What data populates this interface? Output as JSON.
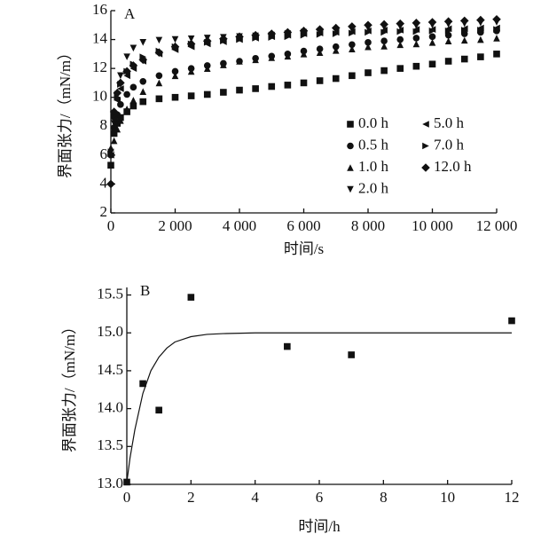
{
  "chart_data": [
    {
      "type": "scatter",
      "annotation": "A",
      "x_label": "时间/s",
      "y_label": "界面张力/（mN/m）",
      "xlim": [
        0,
        12000
      ],
      "ylim": [
        2,
        16
      ],
      "xticks": [
        0,
        {
          "value": 2000,
          "label": "2 000"
        },
        {
          "value": 4000,
          "label": "4 000"
        },
        {
          "value": 6000,
          "label": "6 000"
        },
        {
          "value": 8000,
          "label": "8 000"
        },
        {
          "value": 10000,
          "label": "10 000"
        },
        {
          "value": 12000,
          "label": "12 000"
        }
      ],
      "yticks": [
        2,
        4,
        6,
        8,
        10,
        12,
        14,
        16
      ],
      "x": [
        0,
        100,
        200,
        300,
        500,
        700,
        1000,
        1500,
        2000,
        2500,
        3000,
        3500,
        4000,
        4500,
        5000,
        5500,
        6000,
        6500,
        7000,
        7500,
        8000,
        8500,
        9000,
        9500,
        10000,
        10500,
        11000,
        11500,
        12000
      ],
      "series": [
        {
          "name": "0.0 h",
          "marker": "square",
          "color": "#111",
          "values": [
            5.3,
            7.5,
            8.2,
            8.6,
            9.0,
            9.4,
            9.7,
            9.9,
            10.0,
            10.1,
            10.2,
            10.35,
            10.5,
            10.6,
            10.75,
            10.85,
            11.0,
            11.15,
            11.3,
            11.5,
            11.7,
            11.85,
            12.0,
            12.15,
            12.3,
            12.5,
            12.65,
            12.8,
            13.0
          ]
        },
        {
          "name": "0.5 h",
          "marker": "circle",
          "color": "#111",
          "values": [
            6.0,
            7.9,
            8.8,
            9.5,
            10.2,
            10.7,
            11.1,
            11.5,
            11.8,
            12.0,
            12.2,
            12.35,
            12.5,
            12.7,
            12.85,
            13.0,
            13.2,
            13.35,
            13.5,
            13.65,
            13.8,
            13.9,
            14.0,
            14.1,
            14.2,
            14.3,
            14.4,
            14.5,
            14.6
          ]
        },
        {
          "name": "1.0 h",
          "marker": "up",
          "color": "#111",
          "values": [
            6.5,
            7.0,
            7.8,
            8.4,
            9.2,
            9.8,
            10.4,
            11.0,
            11.5,
            11.8,
            12.0,
            12.25,
            12.5,
            12.6,
            12.75,
            12.85,
            13.0,
            13.1,
            13.25,
            13.35,
            13.5,
            13.55,
            13.65,
            13.7,
            13.8,
            13.9,
            13.95,
            14.0,
            14.1
          ]
        },
        {
          "name": "2.0 h",
          "marker": "down",
          "color": "#111",
          "values": [
            6.2,
            8.2,
            10.2,
            11.5,
            12.8,
            13.4,
            13.8,
            13.95,
            14.0,
            14.05,
            14.1,
            14.15,
            14.2,
            14.25,
            14.3,
            14.4,
            14.5,
            14.55,
            14.6,
            14.7,
            14.8,
            14.85,
            14.9,
            14.95,
            15.0,
            15.05,
            15.1,
            15.15,
            15.2
          ]
        },
        {
          "name": "5.0 h",
          "marker": "left",
          "color": "#111",
          "values": [
            6.0,
            8.5,
            9.8,
            10.6,
            11.5,
            12.0,
            12.5,
            13.0,
            13.3,
            13.5,
            13.7,
            13.85,
            14.0,
            14.1,
            14.2,
            14.3,
            14.4,
            14.45,
            14.5,
            14.55,
            14.6,
            14.65,
            14.65,
            14.7,
            14.7,
            14.75,
            14.75,
            14.8,
            14.8
          ]
        },
        {
          "name": "7.0 h",
          "marker": "right",
          "color": "#111",
          "values": [
            6.1,
            8.7,
            10.0,
            10.9,
            11.8,
            12.3,
            12.8,
            13.2,
            13.5,
            13.7,
            13.8,
            13.9,
            14.0,
            14.1,
            14.15,
            14.2,
            14.3,
            14.35,
            14.4,
            14.45,
            14.5,
            14.5,
            14.55,
            14.55,
            14.6,
            14.6,
            14.65,
            14.65,
            14.7
          ]
        },
        {
          "name": "12.0 h",
          "marker": "diamond",
          "color": "#111",
          "values": [
            4.0,
            9.0,
            10.3,
            11.0,
            11.8,
            12.2,
            12.6,
            13.1,
            13.5,
            13.7,
            13.9,
            14.05,
            14.2,
            14.3,
            14.4,
            14.5,
            14.6,
            14.7,
            14.8,
            14.9,
            15.0,
            15.05,
            15.1,
            15.15,
            15.2,
            15.25,
            15.3,
            15.35,
            15.4
          ]
        }
      ]
    },
    {
      "type": "scatter",
      "annotation": "B",
      "x_label": "时间/h",
      "y_label": "界面张力/（mN/m）",
      "xlim": [
        0,
        12
      ],
      "ylim": [
        13,
        15.6
      ],
      "xticks": [
        0,
        2,
        4,
        6,
        8,
        10,
        12
      ],
      "yticks": [
        {
          "value": 13,
          "label": "13.0"
        },
        13.5,
        {
          "value": 14,
          "label": "14.0"
        },
        14.5,
        {
          "value": 15,
          "label": "15.0"
        },
        15.5
      ],
      "series": [
        {
          "marker": "square",
          "color": "#111",
          "x": [
            0,
            0.5,
            1,
            2,
            5,
            7,
            12
          ],
          "values": [
            13.03,
            14.33,
            13.98,
            15.47,
            14.82,
            14.71,
            15.16
          ]
        }
      ],
      "fit": {
        "color": "#111",
        "x": [
          0,
          0.1,
          0.25,
          0.5,
          0.75,
          1,
          1.25,
          1.5,
          2,
          2.5,
          3,
          4,
          6,
          8,
          10,
          12
        ],
        "values": [
          13.03,
          13.35,
          13.72,
          14.2,
          14.5,
          14.68,
          14.8,
          14.88,
          14.95,
          14.98,
          14.99,
          15.0,
          15.0,
          15.0,
          15.0,
          15.0
        ]
      }
    }
  ]
}
